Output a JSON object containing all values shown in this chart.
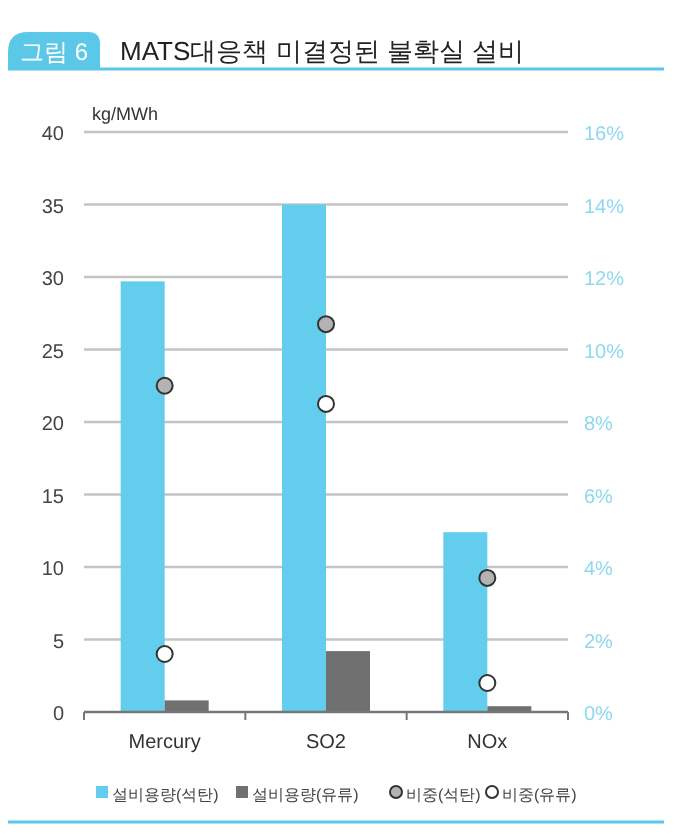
{
  "chart_data": {
    "type": "bar",
    "title": "MATS대응책 미결정된 불확실 설비",
    "ylabel": "kg/MWh",
    "annotations": [
      "그림 6"
    ],
    "categories": [
      "Mercury",
      "SO2",
      "NOx"
    ],
    "series": [
      {
        "name": "설비용량(석탄)",
        "color": "#62cdec",
        "values": [
          29.7,
          35,
          12.4
        ]
      },
      {
        "name": "설비용량(유류)",
        "color": "#717070",
        "values": [
          0.8,
          4.2,
          0.4
        ]
      },
      {
        "name": "비중(석탄)",
        "type": "scatter",
        "axis": "y2",
        "color": "#b3b3b3",
        "values": [
          9.0,
          10.7,
          3.7
        ]
      },
      {
        "name": "비중(유류)",
        "type": "scatter",
        "axis": "y2",
        "color": "#ffffff",
        "values": [
          1.6,
          8.5,
          0.8
        ]
      }
    ],
    "ylim": [
      0,
      40
    ],
    "yticks": [
      0,
      5,
      10,
      15,
      20,
      25,
      30,
      35,
      40
    ],
    "y2lim": [
      0,
      16
    ],
    "y2ticks": [
      {
        "value": 0,
        "label": "0%"
      },
      {
        "value": 2,
        "label": "2%"
      },
      {
        "value": 4,
        "label": "4%"
      },
      {
        "value": 6,
        "label": "6%"
      },
      {
        "value": 8,
        "label": "8%"
      },
      {
        "value": 10,
        "label": "10%"
      },
      {
        "value": 12,
        "label": "12%"
      },
      {
        "value": 14,
        "label": "14%"
      },
      {
        "value": 16,
        "label": "16%"
      }
    ],
    "grid": "y",
    "legend": "bottom",
    "marker": "circle"
  }
}
